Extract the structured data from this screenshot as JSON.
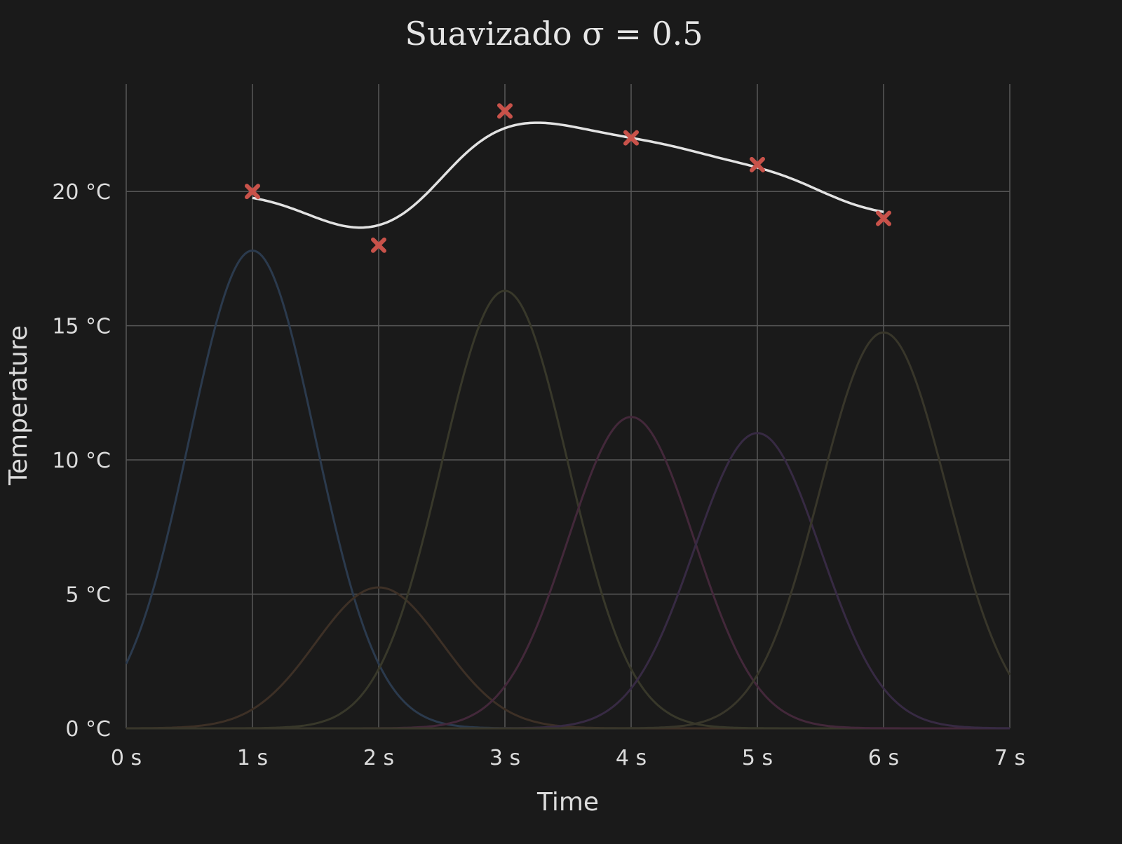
{
  "chart_data": {
    "type": "line",
    "title": "Suavizado σ = 0.5",
    "xlabel": "Time",
    "ylabel": "Temperature",
    "xlim": [
      0,
      7
    ],
    "ylim": [
      0,
      24
    ],
    "grid": true,
    "legend": "none",
    "x_ticks": [
      {
        "value": 0,
        "label": "0 s"
      },
      {
        "value": 1,
        "label": "1 s"
      },
      {
        "value": 2,
        "label": "2 s"
      },
      {
        "value": 3,
        "label": "3 s"
      },
      {
        "value": 4,
        "label": "4 s"
      },
      {
        "value": 5,
        "label": "5 s"
      },
      {
        "value": 6,
        "label": "6 s"
      },
      {
        "value": 7,
        "label": "7 s"
      }
    ],
    "y_ticks": [
      {
        "value": 0,
        "label": "0 °C"
      },
      {
        "value": 5,
        "label": "5 °C"
      },
      {
        "value": 10,
        "label": "10 °C"
      },
      {
        "value": 15,
        "label": "15 °C"
      },
      {
        "value": 20,
        "label": "20 °C"
      }
    ],
    "smoothing_sigma": 0.5,
    "points": [
      {
        "x": 1,
        "y": 20
      },
      {
        "x": 2,
        "y": 18
      },
      {
        "x": 3,
        "y": 23
      },
      {
        "x": 4,
        "y": 22
      },
      {
        "x": 5,
        "y": 21
      },
      {
        "x": 6,
        "y": 19
      }
    ],
    "kernels": [
      {
        "center": 1,
        "peak": 17.8,
        "color": "#2b3a4d"
      },
      {
        "center": 2,
        "peak": 5.25,
        "color": "#3d3026"
      },
      {
        "center": 3,
        "peak": 16.3,
        "color": "#38382a"
      },
      {
        "center": 4,
        "peak": 11.6,
        "color": "#43283a"
      },
      {
        "center": 5,
        "peak": 11.0,
        "color": "#372a43"
      },
      {
        "center": 6,
        "peak": 14.75,
        "color": "#38362a"
      }
    ],
    "colors": {
      "background": "#1a1a1a",
      "smoothed_line": "#e2e2e2",
      "marker": "#c8524a",
      "grid": "#555555"
    }
  }
}
